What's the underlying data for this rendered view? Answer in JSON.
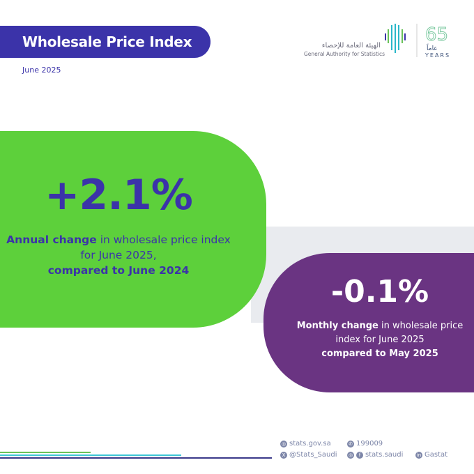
{
  "header": {
    "title": "Wholesale Price Index",
    "date": "June 2025"
  },
  "logo": {
    "arabic": "الهيئة العامة للإحصاء",
    "english": "General Authority for Statistics",
    "anniversary_number": "65",
    "anniversary_arabic": "عاماً",
    "anniversary_label": "YEARS"
  },
  "annual": {
    "value": "+2.1%",
    "bold1": "Annual change",
    "text1": " in wholesale price index for June 2025,",
    "bold2": "compared to June 2024"
  },
  "monthly": {
    "value": "-0.1%",
    "bold1": "Monthly change",
    "text1": " in wholesale price index for June 2025",
    "bold2": "compared to May 2025"
  },
  "footer": {
    "website": "stats.gov.sa",
    "phone": "199009",
    "x": "@Stats_Saudi",
    "insta_fb": "stats.saudi",
    "linkedin": "Gastat"
  },
  "colors": {
    "primary": "#3b33a9",
    "green": "#5dd03b",
    "purple": "#6a3482",
    "band": "#e9ebef"
  }
}
